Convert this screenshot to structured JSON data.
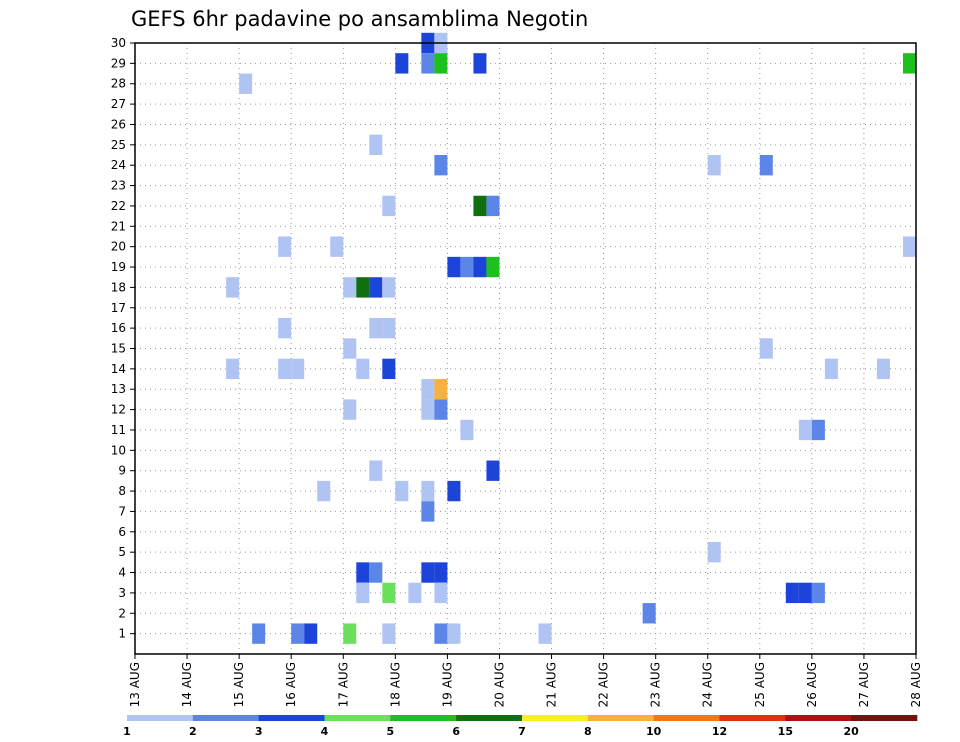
{
  "chart_data": {
    "type": "heatmap",
    "title": "GEFS 6hr padavine po ansamblima Negotin",
    "xlabel": "",
    "ylabel": "",
    "x_tick_labels": [
      "13 AUG",
      "14 AUG",
      "15 AUG",
      "16 AUG",
      "17 AUG",
      "18 AUG",
      "19 AUG",
      "20 AUG",
      "21 AUG",
      "22 AUG",
      "23 AUG",
      "24 AUG",
      "25 AUG",
      "26 AUG",
      "27 AUG",
      "28 AUG"
    ],
    "y_tick_labels": [
      "1",
      "2",
      "3",
      "4",
      "5",
      "6",
      "7",
      "8",
      "9",
      "10",
      "11",
      "12",
      "13",
      "14",
      "15",
      "16",
      "17",
      "18",
      "19",
      "20",
      "21",
      "22",
      "23",
      "24",
      "25",
      "26",
      "27",
      "28",
      "29",
      "30"
    ],
    "xlim_days": [
      0,
      15
    ],
    "ylim": [
      0,
      30
    ],
    "grid": true,
    "legend": {
      "placement": "bottom",
      "colors": [
        "#b0c4f4",
        "#5b86e8",
        "#1c44d8",
        "#6be05c",
        "#1ec01e",
        "#0e700e",
        "#f8f020",
        "#f8b040",
        "#f07818",
        "#e03010",
        "#b01010",
        "#781010"
      ],
      "labels": [
        "1",
        "2",
        "3",
        "4",
        "5",
        "6",
        "7",
        "8",
        "10",
        "12",
        "15",
        "20"
      ]
    },
    "cells": [
      [
        22,
        30,
        3
      ],
      [
        23,
        30,
        1
      ],
      [
        20,
        29,
        3
      ],
      [
        22,
        29,
        2
      ],
      [
        23,
        29,
        5
      ],
      [
        26,
        29,
        3
      ],
      [
        59,
        29,
        5
      ],
      [
        8,
        28,
        1
      ],
      [
        18,
        25,
        1
      ],
      [
        23,
        24,
        2
      ],
      [
        44,
        24,
        1
      ],
      [
        48,
        24,
        2
      ],
      [
        19,
        22,
        1
      ],
      [
        26,
        22,
        6
      ],
      [
        27,
        22,
        2
      ],
      [
        11,
        20,
        1
      ],
      [
        15,
        20,
        1
      ],
      [
        59,
        20,
        1
      ],
      [
        24,
        19,
        3
      ],
      [
        25,
        19,
        2
      ],
      [
        26,
        19,
        3
      ],
      [
        27,
        19,
        5
      ],
      [
        7,
        18,
        1
      ],
      [
        16,
        18,
        1
      ],
      [
        17,
        18,
        6
      ],
      [
        18,
        18,
        3
      ],
      [
        19,
        18,
        1
      ],
      [
        11,
        16,
        1
      ],
      [
        18,
        16,
        1
      ],
      [
        19,
        16,
        1
      ],
      [
        16,
        15,
        1
      ],
      [
        48,
        15,
        1
      ],
      [
        7,
        14,
        1
      ],
      [
        11,
        14,
        1
      ],
      [
        12,
        14,
        1
      ],
      [
        17,
        14,
        1
      ],
      [
        19,
        14,
        3
      ],
      [
        53,
        14,
        1
      ],
      [
        57,
        14,
        1
      ],
      [
        22,
        13,
        1
      ],
      [
        23,
        13,
        8
      ],
      [
        16,
        12,
        1
      ],
      [
        22,
        12,
        1
      ],
      [
        23,
        12,
        2
      ],
      [
        25,
        11,
        1
      ],
      [
        51,
        11,
        1
      ],
      [
        52,
        11,
        2
      ],
      [
        18,
        9,
        1
      ],
      [
        27,
        9,
        3
      ],
      [
        14,
        8,
        1
      ],
      [
        20,
        8,
        1
      ],
      [
        22,
        8,
        1
      ],
      [
        24,
        8,
        3
      ],
      [
        22,
        7,
        2
      ],
      [
        44,
        5,
        1
      ],
      [
        17,
        4,
        3
      ],
      [
        18,
        4,
        2
      ],
      [
        22,
        4,
        3
      ],
      [
        23,
        4,
        3
      ],
      [
        17,
        3,
        1
      ],
      [
        19,
        3,
        4
      ],
      [
        21,
        3,
        1
      ],
      [
        23,
        3,
        1
      ],
      [
        50,
        3,
        3
      ],
      [
        51,
        3,
        3
      ],
      [
        52,
        3,
        2
      ],
      [
        39,
        2,
        2
      ],
      [
        9,
        1,
        2
      ],
      [
        12,
        1,
        2
      ],
      [
        13,
        1,
        3
      ],
      [
        16,
        1,
        4
      ],
      [
        19,
        1,
        1
      ],
      [
        23,
        1,
        2
      ],
      [
        24,
        1,
        1
      ],
      [
        31,
        1,
        1
      ]
    ]
  }
}
